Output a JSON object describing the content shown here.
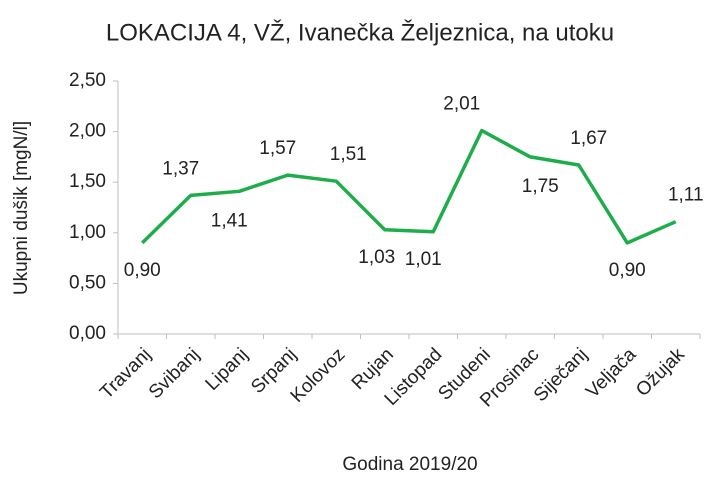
{
  "chart_data": {
    "type": "line",
    "title": "LOKACIJA 4, VŽ, Ivanečka Željeznica, na utoku",
    "x_label": "Godina 2019/20",
    "y_label": "Ukupni dušik [mgN/l]",
    "categories": [
      "Travanj",
      "Svibanj",
      "Lipanj",
      "Srpanj",
      "Kolovoz",
      "Rujan",
      "Listopad",
      "Studeni",
      "Prosinac",
      "Siječanj",
      "Veljača",
      "Ožujak"
    ],
    "values": [
      0.9,
      1.37,
      1.41,
      1.57,
      1.51,
      1.03,
      1.01,
      2.01,
      1.75,
      1.67,
      0.9,
      1.11
    ],
    "value_labels": [
      "0,90",
      "1,37",
      "1,41",
      "1,57",
      "1,51",
      "1,03",
      "1,01",
      "2,01",
      "1,75",
      "1,67",
      "0,90",
      "1,11"
    ],
    "color": "#1fad4c",
    "ylim": [
      0,
      2.5
    ],
    "yticks": [
      {
        "value": 0,
        "label": "0,00"
      },
      {
        "value": 0.5,
        "label": "0,50"
      },
      {
        "value": 1,
        "label": "1,00"
      },
      {
        "value": 1.5,
        "label": "1,50"
      },
      {
        "value": 2,
        "label": "2,00"
      },
      {
        "value": 2.5,
        "label": "2,50"
      }
    ],
    "grid": false
  }
}
